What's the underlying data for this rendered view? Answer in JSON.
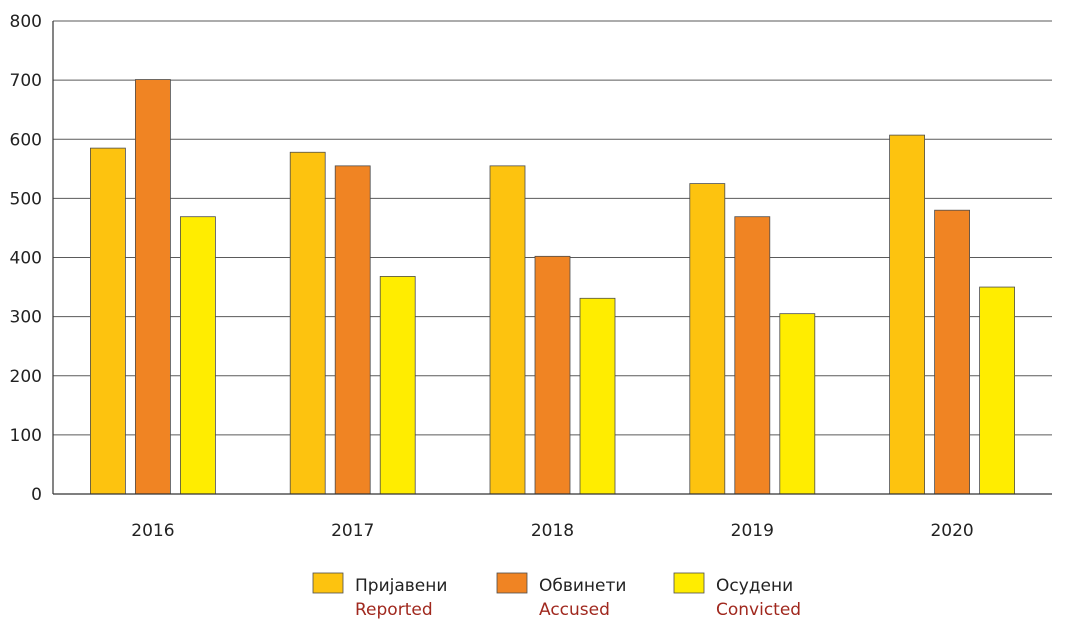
{
  "chart_data": {
    "type": "bar",
    "categories": [
      "2016",
      "2017",
      "2018",
      "2019",
      "2020"
    ],
    "series": [
      {
        "name": "Пријавени",
        "name_en": "Reported",
        "color": "#FDC30F",
        "values": [
          585,
          578,
          555,
          525,
          607
        ]
      },
      {
        "name": "Обвинети",
        "name_en": "Accused",
        "color": "#F08423",
        "values": [
          701,
          555,
          402,
          469,
          480
        ]
      },
      {
        "name": "Осудени",
        "name_en": "Convicted",
        "color": "#FFED00",
        "values": [
          469,
          368,
          331,
          305,
          350
        ]
      }
    ],
    "ylim": [
      0,
      800
    ],
    "yticks": [
      0,
      100,
      200,
      300,
      400,
      500,
      600,
      700,
      800
    ],
    "title": "",
    "xlabel": "",
    "ylabel": "",
    "grid": true,
    "legend_position": "bottom-center"
  }
}
